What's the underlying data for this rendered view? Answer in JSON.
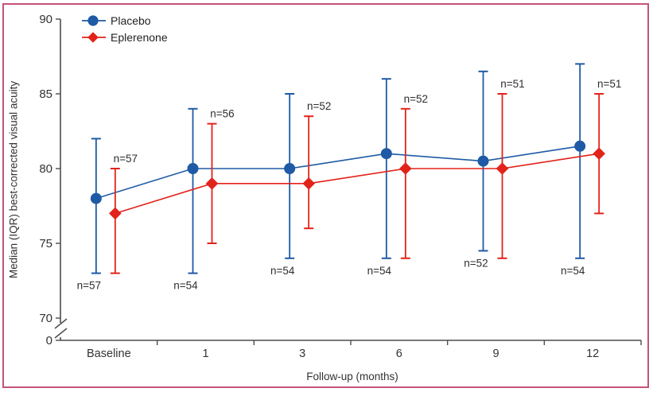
{
  "figure": {
    "border_color": "#c4537a",
    "background": "#ffffff"
  },
  "chart_data": {
    "type": "line",
    "title": "",
    "xlabel": "Follow-up (months)",
    "ylabel": "Median (IQR) best-corrected visual acuity",
    "categories": [
      "Baseline",
      "1",
      "3",
      "6",
      "9",
      "12"
    ],
    "y_ticks": [
      90,
      85,
      80,
      75,
      70
    ],
    "y_break": {
      "shown": true,
      "zero_label": "0"
    },
    "ylim": [
      70,
      90
    ],
    "grid": false,
    "legend_position": "top-left",
    "axis_color": "#4d4d4d",
    "text_color": "#333333",
    "series": [
      {
        "name": "Placebo",
        "color": "#1e5aa5",
        "marker": "circle",
        "medians": [
          78,
          80,
          80,
          81,
          80.5,
          81.5
        ],
        "iqr_low": [
          73,
          73,
          74,
          74,
          74.5,
          74
        ],
        "iqr_high": [
          82,
          84,
          85,
          86,
          86.5,
          87
        ],
        "n_labels": [
          "n=57",
          "n=54",
          "n=54",
          "n=54",
          "n=52",
          "n=54"
        ],
        "n_label_position": "below"
      },
      {
        "name": "Eplerenone",
        "color": "#e2231a",
        "marker": "diamond",
        "medians": [
          77,
          79,
          79,
          80,
          80,
          81
        ],
        "iqr_low": [
          73,
          75,
          76,
          74,
          74,
          77
        ],
        "iqr_high": [
          80,
          83,
          83.5,
          84,
          85,
          85
        ],
        "n_labels": [
          "n=57",
          "n=56",
          "n=52",
          "n=52",
          "n=51",
          "n=51"
        ],
        "n_label_position": "above"
      }
    ]
  }
}
